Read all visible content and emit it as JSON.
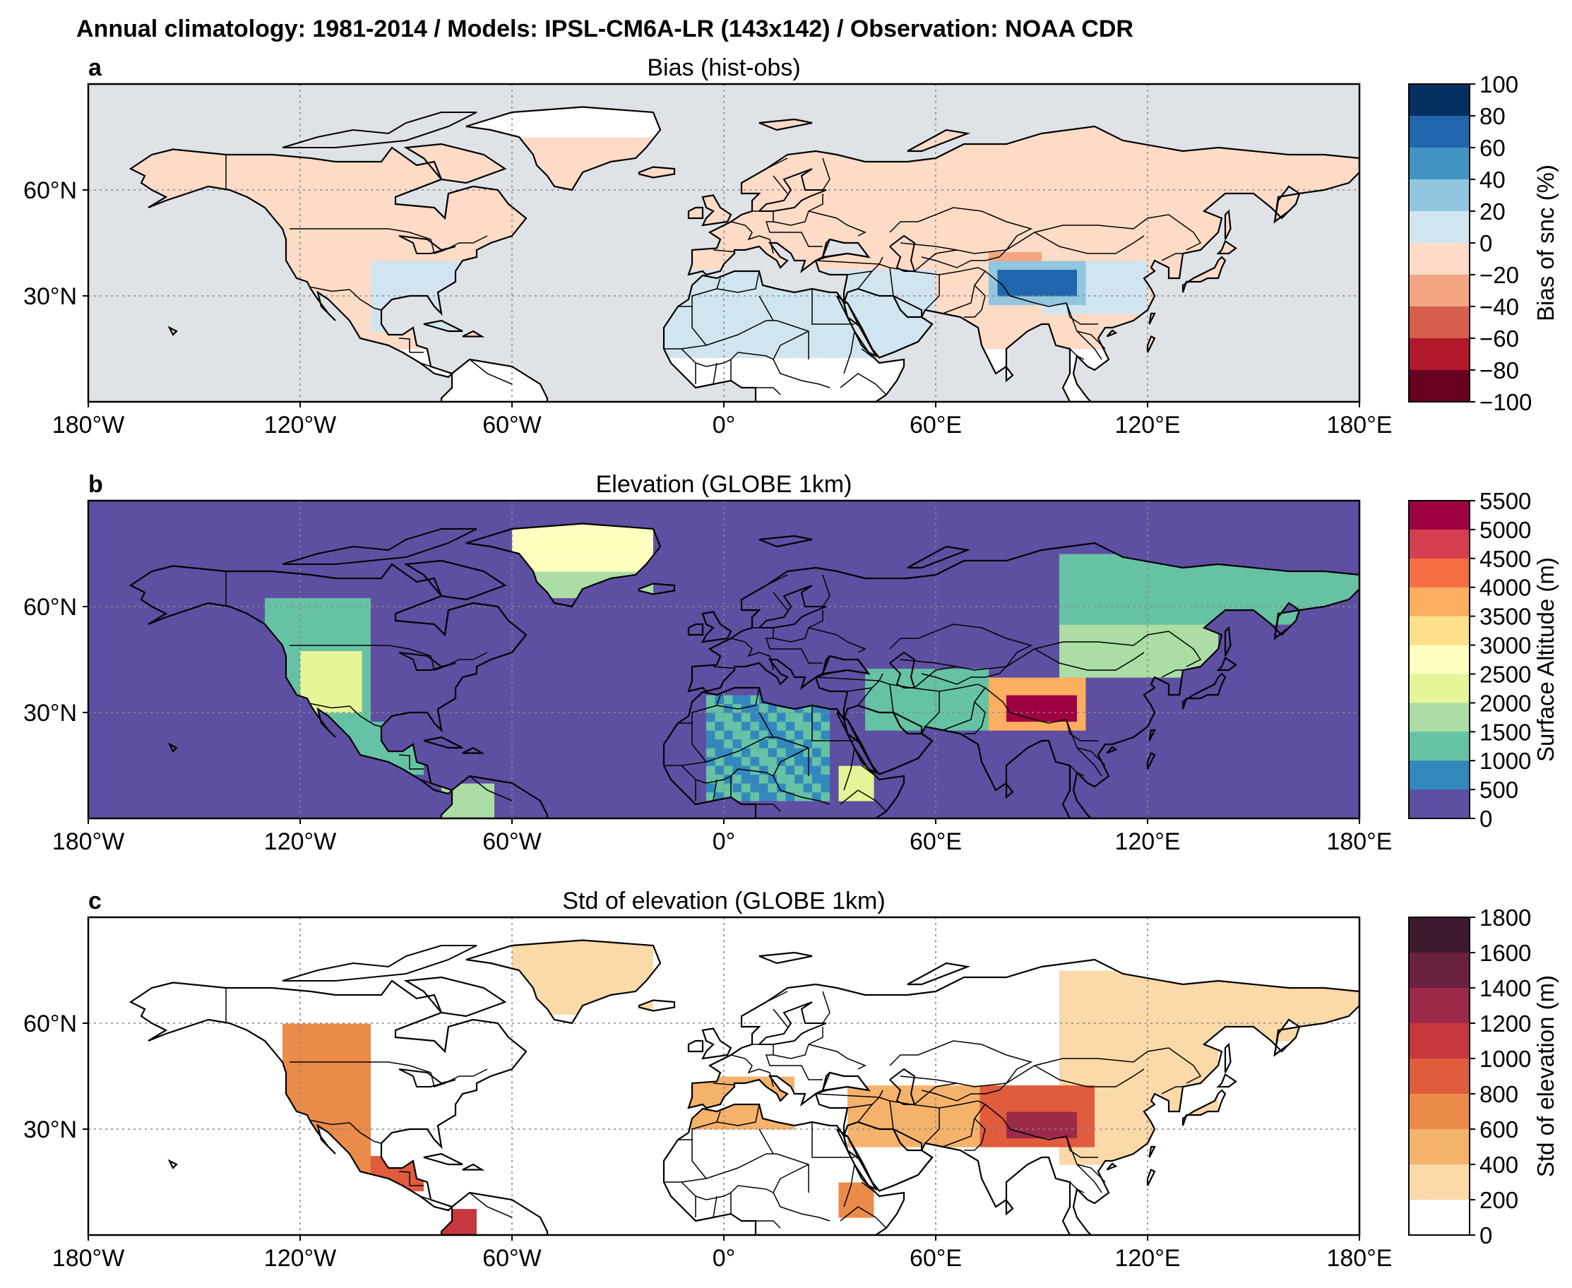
{
  "figure": {
    "title": "Annual climatology: 1981-2014 / Models: IPSL-CM6A-LR (143x142) / Observation: NOAA CDR"
  },
  "axes": {
    "lon_ticks": [
      "180°W",
      "120°W",
      "60°W",
      "0°",
      "60°E",
      "120°E",
      "180°E"
    ],
    "lat_ticks": [
      "60°N",
      "30°N"
    ],
    "lon_range": [
      -180,
      180
    ],
    "lat_range": [
      0,
      90
    ]
  },
  "panels": [
    {
      "letter": "a",
      "title": "Bias (hist-obs)",
      "colorbar": {
        "label": "Bias of snc (%)",
        "ticks": [
          "100",
          "80",
          "60",
          "40",
          "20",
          "0",
          "−20",
          "−40",
          "−60",
          "−80",
          "−100"
        ],
        "colors": [
          "#053061",
          "#2166ac",
          "#4393c3",
          "#92c5de",
          "#d1e5f0",
          "#fddbc7",
          "#f4a582",
          "#d6604d",
          "#b2182b",
          "#67001f"
        ]
      },
      "background_color": "#dfe2e6",
      "land_color": "#fbe6dc",
      "features": [
        {
          "name": "High positive bias over Tibetan Plateau",
          "color": "#2166ac"
        },
        {
          "name": "Slight positive bias North Africa/Middle East",
          "color": "#e3edf5"
        }
      ]
    },
    {
      "letter": "b",
      "title": "Elevation (GLOBE 1km)",
      "colorbar": {
        "label": "Surface Altitude (m)",
        "ticks": [
          "5500",
          "5000",
          "4500",
          "4000",
          "3500",
          "3000",
          "2500",
          "2000",
          "1500",
          "1000",
          "500",
          "0"
        ],
        "colors": [
          "#9e0142",
          "#d53e4f",
          "#f46d43",
          "#fdae61",
          "#fee08b",
          "#ffffbf",
          "#e6f598",
          "#abdda4",
          "#66c2a5",
          "#3288bd",
          "#5e4fa2"
        ]
      },
      "background_color": "#5e4fa2"
    },
    {
      "letter": "c",
      "title": "Std of elevation (GLOBE 1km)",
      "colorbar": {
        "label": "Std of elevation (m)",
        "ticks": [
          "1800",
          "1600",
          "1400",
          "1200",
          "1000",
          "800",
          "600",
          "400",
          "200",
          "0"
        ],
        "colors": [
          "#3f1a2e",
          "#6b2140",
          "#9b2a48",
          "#c7373e",
          "#e05c3c",
          "#eb8b4a",
          "#f4b26b",
          "#fbd9a8",
          "#ffffff"
        ]
      },
      "background_color": "#ffffff"
    }
  ]
}
